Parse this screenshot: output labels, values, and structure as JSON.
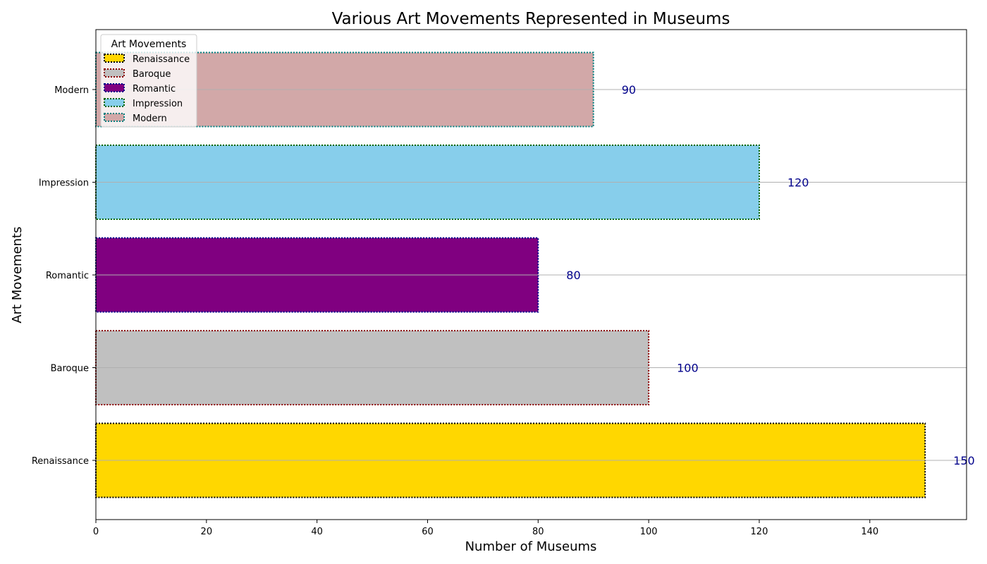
{
  "chart_data": {
    "type": "bar",
    "orientation": "horizontal",
    "title": "Various Art Movements Represented in Museums",
    "xlabel": "Number of Museums",
    "ylabel": "Art Movements",
    "categories": [
      "Renaissance",
      "Baroque",
      "Romantic",
      "Impression",
      "Modern"
    ],
    "values": [
      150,
      100,
      80,
      120,
      90
    ],
    "colors": [
      "#FFD700",
      "#C0C0C0",
      "#800080",
      "#87CEEB",
      "#D2A8A8"
    ],
    "edge_colors": [
      "#000000",
      "#8B0000",
      "#00008B",
      "#006400",
      "#008080"
    ],
    "value_label_color": "#00008B",
    "xlim": [
      0,
      157.5
    ],
    "xticks": [
      0,
      20,
      40,
      60,
      80,
      100,
      120,
      140
    ],
    "grid": "y-axis horizontal lines",
    "legend": {
      "title": "Art Movements",
      "placement": "top-left",
      "entries": [
        "Renaissance",
        "Baroque",
        "Romantic",
        "Impression",
        "Modern"
      ]
    }
  }
}
